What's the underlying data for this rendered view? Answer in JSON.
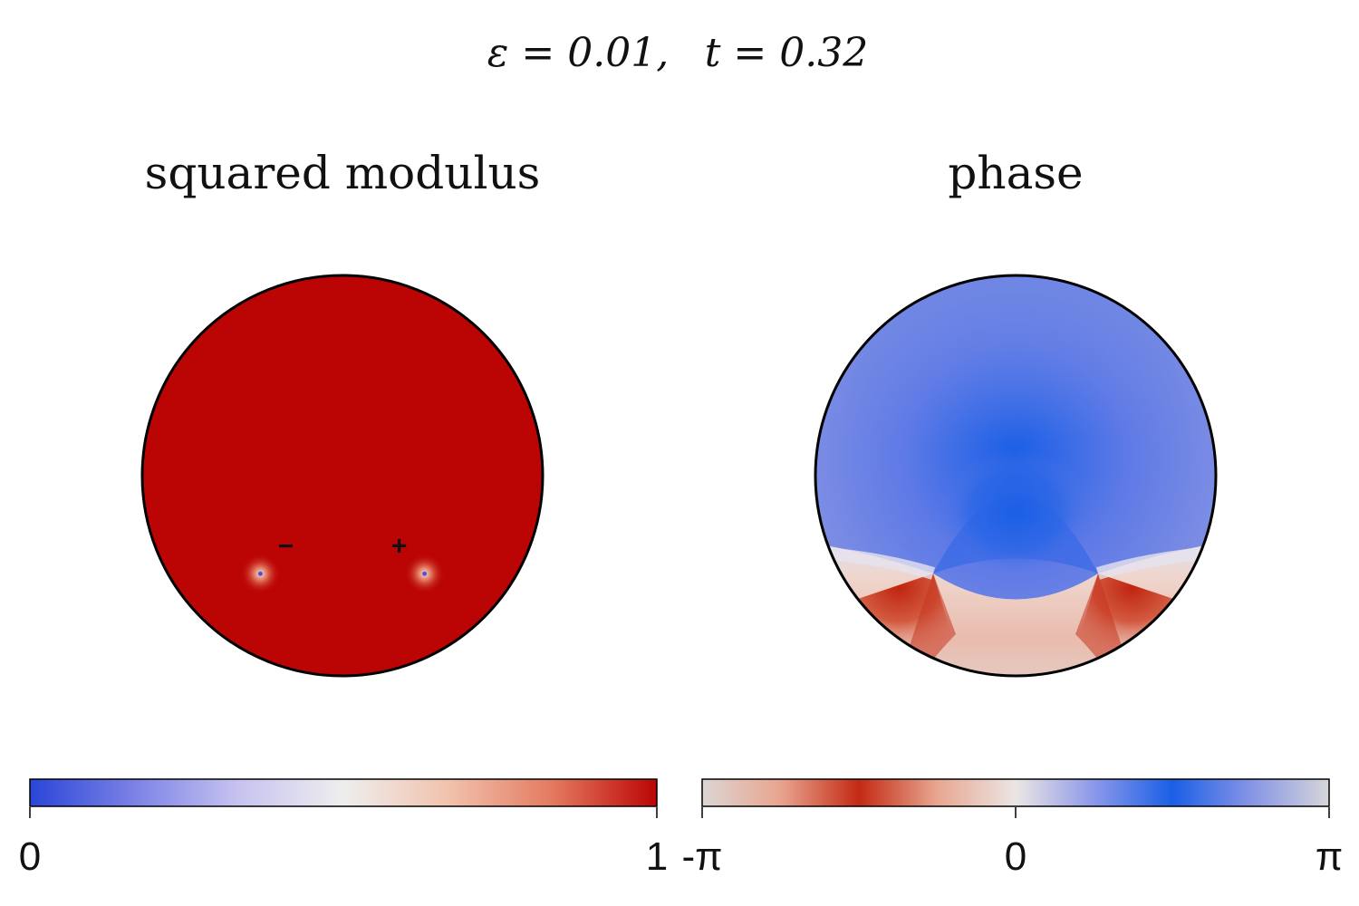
{
  "figure": {
    "title_epsilon": "ε = 0.01,",
    "title_time": "t = 0.32"
  },
  "chart_data": [
    {
      "type": "heatmap",
      "title": "squared modulus",
      "domain": "disk",
      "uniform_value": 1,
      "vortices": [
        {
          "charge_label": "−",
          "charge": -1,
          "x": -0.41,
          "y": -0.49
        },
        {
          "charge_label": "+",
          "charge": 1,
          "x": 0.41,
          "y": -0.49
        }
      ],
      "colorbar": {
        "ticks": [
          "0",
          "1"
        ],
        "range": [
          0,
          1
        ],
        "colors": [
          "#2a45d8",
          "#7b82e6",
          "#c7c3f0",
          "#eeeeee",
          "#f1c2ad",
          "#e47a60",
          "#bb0505"
        ]
      },
      "fill_color": "#bb0505"
    },
    {
      "type": "heatmap",
      "title": "phase",
      "domain": "disk",
      "colorbar": {
        "ticks": [
          "-π",
          "0",
          "π"
        ],
        "range": [
          -3.14159,
          3.14159
        ],
        "colors": [
          "#dcd6d4",
          "#e9a48f",
          "#c32a14",
          "#e8a690",
          "#ebe6e4",
          "#8c98ea",
          "#1a5fe6",
          "#8694e6",
          "#d6d6da"
        ]
      },
      "center_color": "#1a5fe6"
    }
  ]
}
